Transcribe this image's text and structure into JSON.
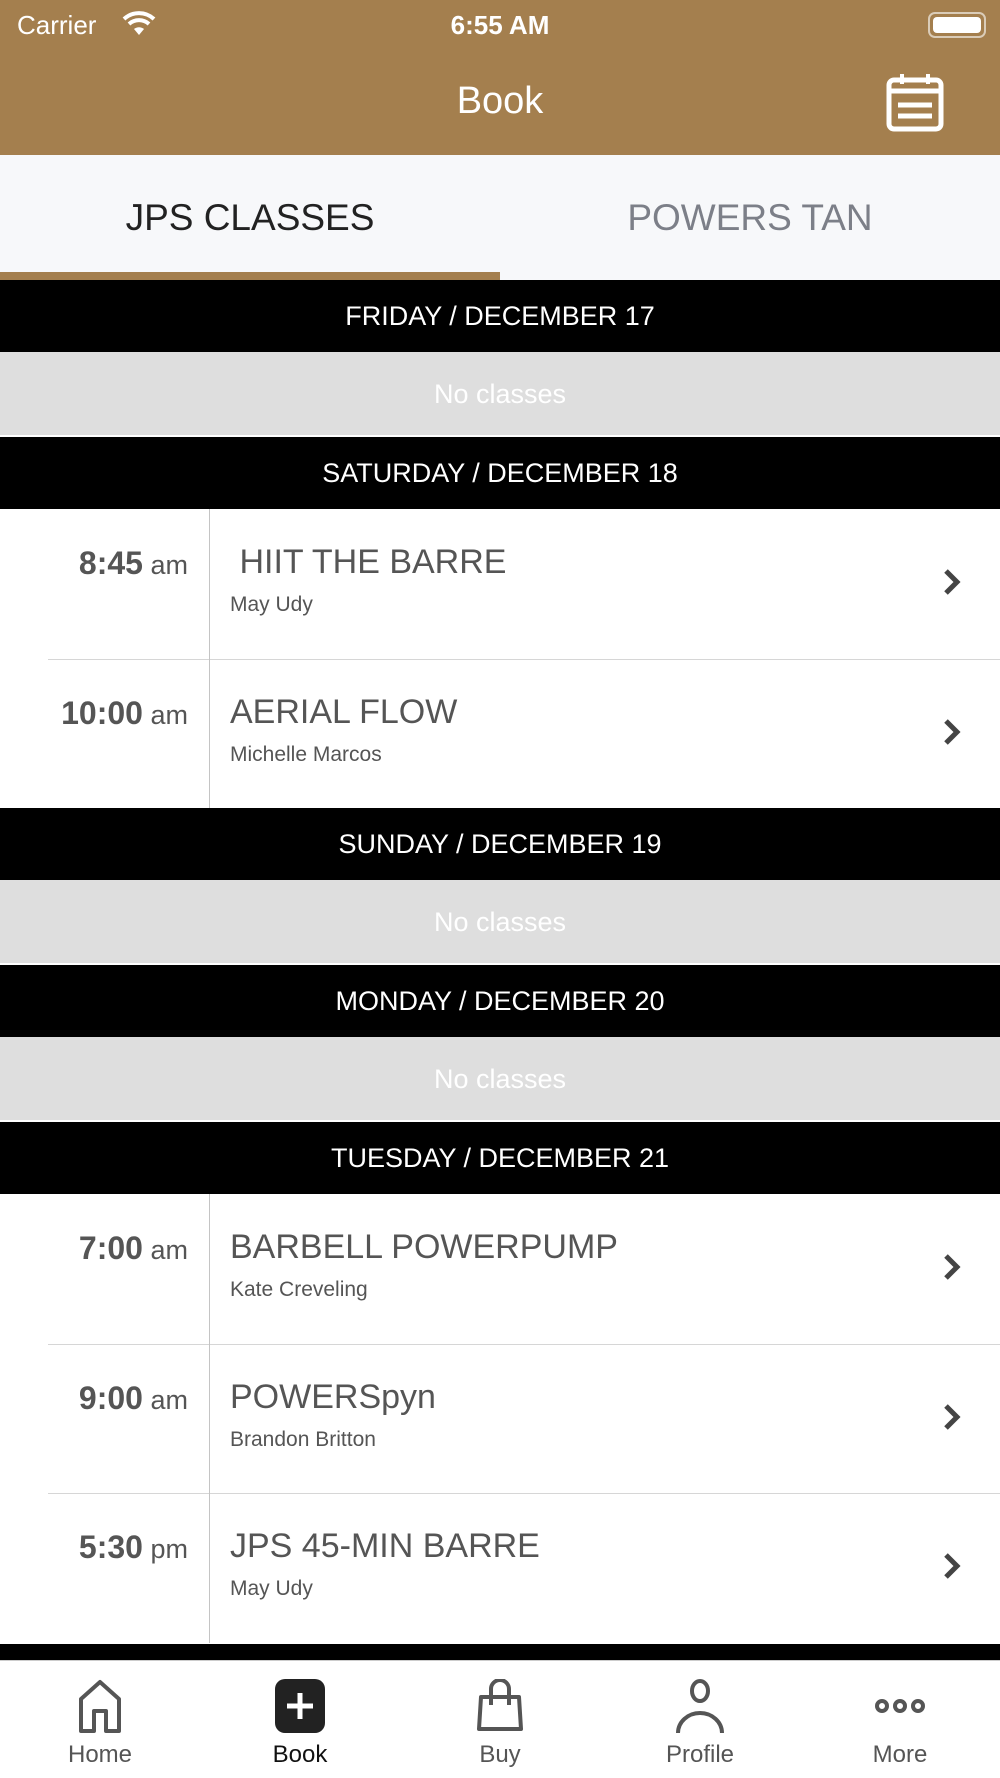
{
  "status": {
    "carrier": "Carrier",
    "time": "6:55 AM"
  },
  "nav": {
    "title": "Book",
    "accent": "#a47f4e"
  },
  "tabs": [
    {
      "label": "JPS CLASSES",
      "active": true
    },
    {
      "label": "POWERS TAN",
      "active": false
    }
  ],
  "days": [
    {
      "header": "FRIDAY / DECEMBER 17",
      "empty": "No classes",
      "classes": []
    },
    {
      "header": "SATURDAY / DECEMBER 18",
      "classes": [
        {
          "time": "8:45",
          "ampm": "am",
          "title": " HIIT THE BARRE",
          "instructor": "May Udy"
        },
        {
          "time": "10:00",
          "ampm": "am",
          "title": "AERIAL FLOW",
          "instructor": "Michelle Marcos"
        }
      ]
    },
    {
      "header": "SUNDAY / DECEMBER 19",
      "empty": "No classes",
      "classes": []
    },
    {
      "header": "MONDAY / DECEMBER 20",
      "empty": "No classes",
      "classes": []
    },
    {
      "header": "TUESDAY / DECEMBER 21",
      "classes": [
        {
          "time": "7:00",
          "ampm": "am",
          "title": "BARBELL POWERPUMP",
          "instructor": "Kate Creveling"
        },
        {
          "time": "9:00",
          "ampm": "am",
          "title": "POWERSpyn",
          "instructor": "Brandon Britton"
        },
        {
          "time": "5:30",
          "ampm": "pm",
          "title": "JPS 45-MIN BARRE",
          "instructor": "May Udy"
        }
      ]
    }
  ],
  "tabbar": [
    {
      "label": "Home",
      "icon": "home-icon"
    },
    {
      "label": "Book",
      "icon": "plus-square-icon",
      "active": true
    },
    {
      "label": "Buy",
      "icon": "bag-icon"
    },
    {
      "label": "Profile",
      "icon": "person-icon"
    },
    {
      "label": "More",
      "icon": "more-icon"
    }
  ]
}
